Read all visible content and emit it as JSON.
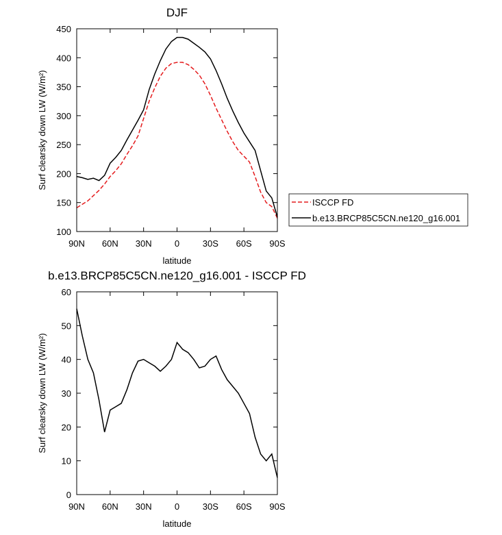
{
  "chart_data": [
    {
      "type": "line",
      "title": "DJF",
      "x_label": "latitude",
      "y_label": "Surf clearsky down LW (W/m²)",
      "x": [
        90,
        85,
        80,
        75,
        70,
        65,
        60,
        55,
        50,
        45,
        40,
        35,
        30,
        25,
        20,
        15,
        10,
        5,
        0,
        -5,
        -10,
        -15,
        -20,
        -25,
        -30,
        -35,
        -40,
        -45,
        -50,
        -55,
        -60,
        -65,
        -70,
        -75,
        -80,
        -85,
        -90
      ],
      "xlim": [
        90,
        -90
      ],
      "xticks": [
        {
          "value": 90,
          "label": "90N"
        },
        {
          "value": 60,
          "label": "60N"
        },
        {
          "value": 30,
          "label": "30N"
        },
        0,
        {
          "value": -30,
          "label": "30S"
        },
        {
          "value": -60,
          "label": "60S"
        },
        {
          "value": -90,
          "label": "90S"
        }
      ],
      "ylim": [
        100,
        450
      ],
      "yticks": [
        100,
        150,
        200,
        250,
        300,
        350,
        400,
        450
      ],
      "series": [
        {
          "name": "ISCCP FD",
          "color": "#e41a1c",
          "dashed": true,
          "values": [
            141,
            147,
            153,
            162,
            171,
            182,
            195,
            205,
            217,
            233,
            248,
            265,
            295,
            325,
            348,
            368,
            382,
            390,
            392,
            392,
            388,
            380,
            370,
            355,
            335,
            313,
            293,
            273,
            255,
            240,
            230,
            220,
            195,
            168,
            150,
            143,
            123
          ]
        },
        {
          "name": "b.e13.BRCP85C5CN.ne120_g16.001",
          "color": "#000000",
          "dashed": false,
          "values": [
            195,
            193,
            190,
            192,
            188,
            197,
            218,
            228,
            240,
            258,
            275,
            292,
            310,
            345,
            372,
            395,
            415,
            428,
            435,
            435,
            432,
            425,
            418,
            410,
            398,
            378,
            355,
            330,
            308,
            288,
            270,
            255,
            240,
            205,
            170,
            158,
            125
          ]
        }
      ]
    },
    {
      "type": "line",
      "title": "b.e13.BRCP85C5CN.ne120_g16.001 - ISCCP FD",
      "x_label": "latitude",
      "y_label": "Surf clearsky down LW (W/m²)",
      "x": [
        90,
        85,
        80,
        75,
        70,
        65,
        60,
        55,
        50,
        45,
        40,
        35,
        30,
        25,
        20,
        15,
        10,
        5,
        0,
        -5,
        -10,
        -15,
        -20,
        -25,
        -30,
        -35,
        -40,
        -45,
        -50,
        -55,
        -60,
        -65,
        -70,
        -75,
        -80,
        -85,
        -90
      ],
      "xlim": [
        90,
        -90
      ],
      "xticks": [
        {
          "value": 90,
          "label": "90N"
        },
        {
          "value": 60,
          "label": "60N"
        },
        {
          "value": 30,
          "label": "30N"
        },
        0,
        {
          "value": -30,
          "label": "30S"
        },
        {
          "value": -60,
          "label": "60S"
        },
        {
          "value": -90,
          "label": "90S"
        }
      ],
      "ylim": [
        0,
        60
      ],
      "yticks": [
        0,
        10,
        20,
        30,
        40,
        50,
        60
      ],
      "color": "#000000",
      "values": [
        55,
        47,
        40,
        36,
        28,
        18.5,
        25,
        26,
        27,
        31,
        36,
        39.5,
        40,
        39,
        38,
        36.5,
        38,
        40,
        45,
        43,
        42,
        40,
        37.5,
        38,
        40,
        41,
        37,
        34,
        32,
        30,
        27,
        24,
        17,
        12,
        10,
        12,
        5
      ]
    }
  ]
}
